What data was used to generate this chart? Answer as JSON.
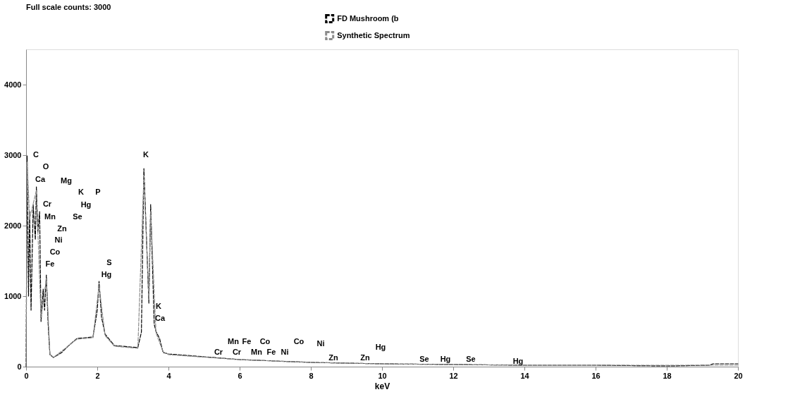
{
  "chart_data": {
    "type": "line",
    "title": "Full scale counts: 3000",
    "xlabel": "keV",
    "xlim": [
      0,
      20
    ],
    "xticks": [
      0,
      2,
      4,
      6,
      8,
      10,
      12,
      14,
      16,
      18,
      20
    ],
    "ylim": [
      0,
      4500
    ],
    "yticks": [
      0,
      1000,
      2000,
      3000,
      4000
    ],
    "grid": false,
    "legend": "top",
    "marker": "none",
    "series": [
      {
        "name": "FD Mushroom (b",
        "color": "#000000",
        "line_style": "dashed",
        "x": [
          0,
          0.03,
          0.07,
          0.1,
          0.14,
          0.2,
          0.26,
          0.29,
          0.33,
          0.38,
          0.42,
          0.48,
          0.52,
          0.57,
          0.62,
          0.67,
          0.77,
          1.0,
          1.2,
          1.43,
          1.88,
          2.0,
          2.05,
          2.12,
          2.22,
          2.48,
          3.14,
          3.24,
          3.31,
          3.45,
          3.5,
          3.6,
          3.65,
          3.75,
          3.85,
          4.0,
          5,
          6,
          7,
          8,
          9,
          10,
          12,
          14,
          16,
          18,
          19.2,
          19.3,
          20
        ],
        "values": [
          0,
          2990,
          1000,
          2200,
          800,
          2300,
          1800,
          2550,
          1900,
          2200,
          640,
          1100,
          800,
          1300,
          600,
          170,
          130,
          200,
          300,
          400,
          420,
          800,
          1210,
          700,
          460,
          300,
          270,
          490,
          2810,
          900,
          2300,
          600,
          500,
          400,
          200,
          180,
          140,
          100,
          80,
          60,
          50,
          40,
          30,
          20,
          20,
          10,
          20,
          40,
          40
        ]
      },
      {
        "name": "Synthetic Spectrum",
        "color": "#8c8c8c",
        "line_style": "dashed",
        "x": [
          0,
          0.03,
          0.1,
          0.29,
          0.42,
          0.57,
          0.67,
          0.77,
          1.43,
          1.88,
          2.05,
          2.22,
          2.48,
          3.14,
          3.31,
          3.45,
          3.5,
          3.65,
          3.85,
          4.0,
          6,
          8,
          10,
          14,
          20
        ],
        "values": [
          0,
          2900,
          2100,
          2500,
          700,
          1250,
          180,
          130,
          390,
          410,
          1150,
          440,
          290,
          260,
          2700,
          950,
          2200,
          480,
          210,
          170,
          100,
          60,
          40,
          20,
          20
        ]
      }
    ],
    "annotations": [
      "C",
      "O",
      "Ca",
      "Mg",
      "K",
      "P",
      "Cr",
      "Hg",
      "Mn",
      "Se",
      "Zn",
      "Ni",
      "Co",
      "Fe",
      "S",
      "Hg",
      "K",
      "K",
      "Ca",
      "Mn",
      "Fe",
      "Co",
      "Co",
      "Ni",
      "Cr",
      "Cr",
      "Mn",
      "Fe",
      "Ni",
      "Zn",
      "Zn",
      "Hg",
      "Se",
      "Hg",
      "Se",
      "Hg"
    ]
  }
}
